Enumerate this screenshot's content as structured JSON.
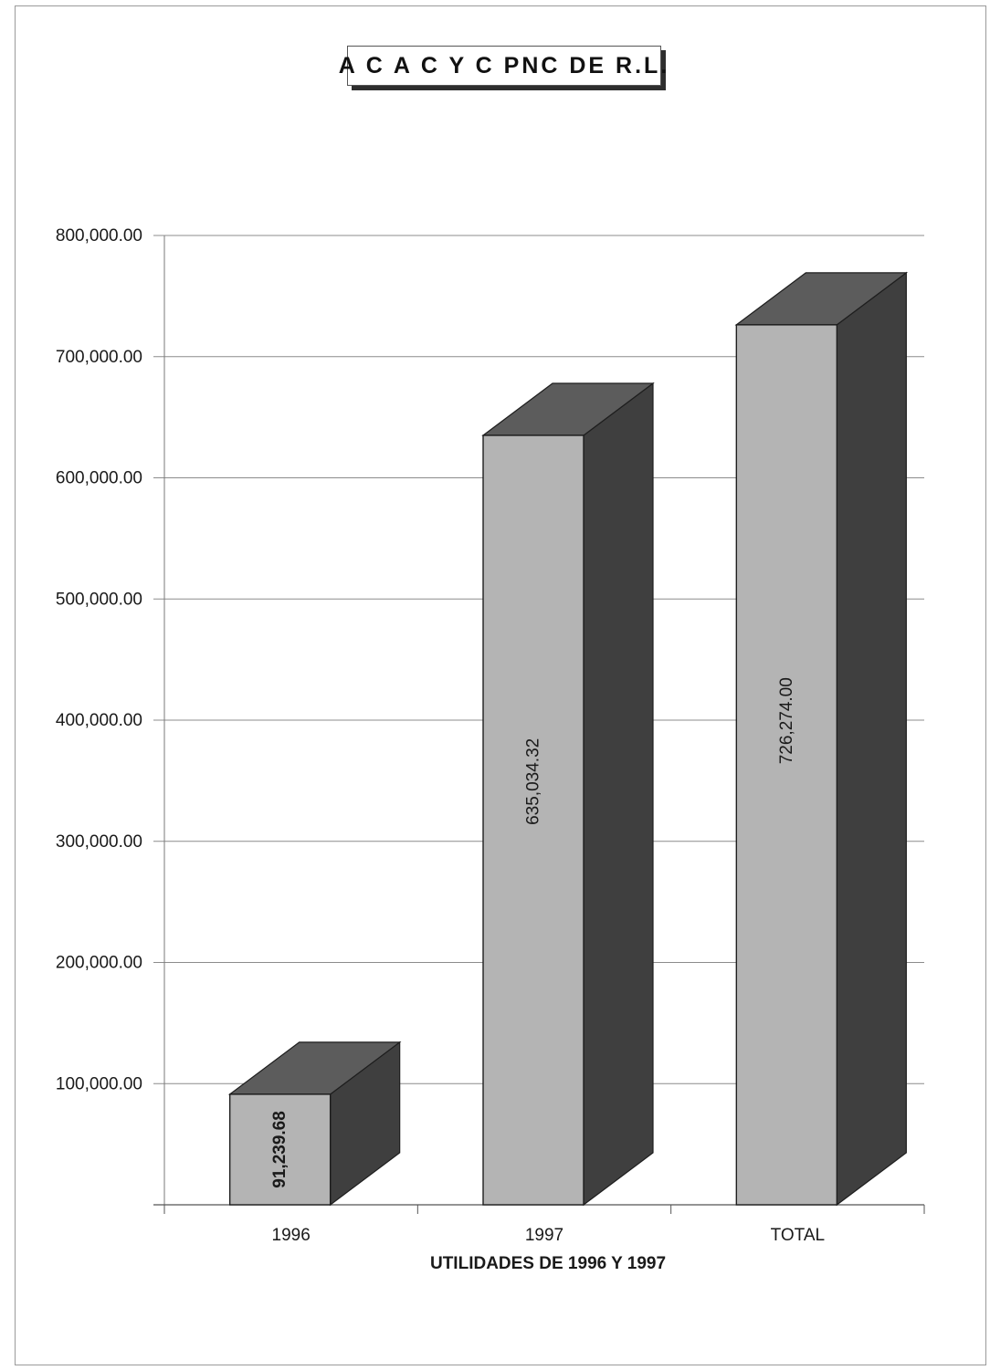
{
  "chart_data": {
    "type": "bar",
    "title": "A C A C Y C PNC DE R.L.",
    "xlabel": "UTILIDADES DE 1996 Y 1997",
    "ylabel": "",
    "categories": [
      "1996",
      "1997",
      "TOTAL"
    ],
    "values": [
      91239.68,
      635034.32,
      726274.0
    ],
    "data_labels": [
      "91,239.68",
      "635,034.32",
      "726,274.00"
    ],
    "y_ticks": [
      100000,
      200000,
      300000,
      400000,
      500000,
      600000,
      700000,
      800000
    ],
    "y_tick_labels": [
      "100,000.00",
      "200,000.00",
      "300,000.00",
      "400,000.00",
      "500,000.00",
      "600,000.00",
      "700,000.00",
      "800,000.00"
    ],
    "ylim": [
      0,
      800000
    ],
    "grid": true,
    "legend": "none",
    "style": "3d-columns",
    "colors": {
      "front": "#b4b4b4",
      "top": "#5c5c5c",
      "side": "#3f3f3f",
      "edge": "#1e1e1e",
      "grid": "#8c8c8c",
      "text": "#1a1a1a"
    }
  }
}
